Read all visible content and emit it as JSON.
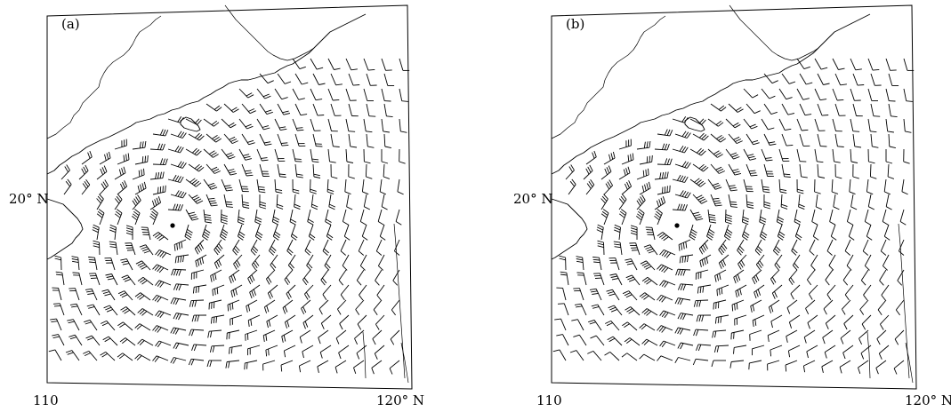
{
  "figure": {
    "panels": [
      {
        "label": "(a)",
        "center_marker": "typhoon-center-dot"
      },
      {
        "label": "(b)",
        "center_marker": "typhoon-center-dot"
      }
    ],
    "lat_label": "20° N",
    "lon_left": "110",
    "lon_right": "120° N"
  },
  "wind_field": {
    "symbol": "wind-barb-icon",
    "pattern": "cyclonic-circulation",
    "color": "#000000"
  }
}
